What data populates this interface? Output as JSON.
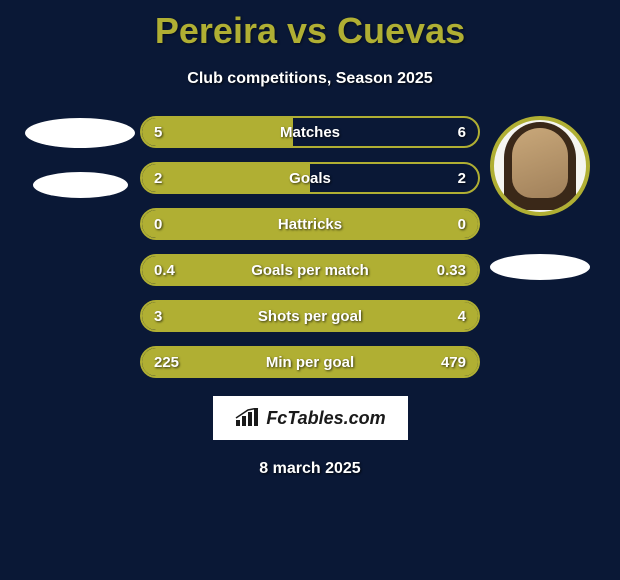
{
  "title": "Pereira vs Cuevas",
  "subtitle": "Club competitions, Season 2025",
  "date": "8 march 2025",
  "logo_text": "FcTables.com",
  "colors": {
    "background": "#0a1836",
    "accent": "#b0af33",
    "text": "#ffffff",
    "ellipse": "#ffffff",
    "logo_bg": "#ffffff",
    "logo_text": "#1a1a1a"
  },
  "stats": [
    {
      "label": "Matches",
      "left_value": "5",
      "right_value": "6",
      "left_pct": 45,
      "right_pct": 0
    },
    {
      "label": "Goals",
      "left_value": "2",
      "right_value": "2",
      "left_pct": 50,
      "right_pct": 0
    },
    {
      "label": "Hattricks",
      "left_value": "0",
      "right_value": "0",
      "left_pct": 100,
      "right_pct": 0
    },
    {
      "label": "Goals per match",
      "left_value": "0.4",
      "right_value": "0.33",
      "left_pct": 100,
      "right_pct": 0
    },
    {
      "label": "Shots per goal",
      "left_value": "3",
      "right_value": "4",
      "left_pct": 100,
      "right_pct": 0
    },
    {
      "label": "Min per goal",
      "left_value": "225",
      "right_value": "479",
      "left_pct": 100,
      "right_pct": 0
    }
  ]
}
